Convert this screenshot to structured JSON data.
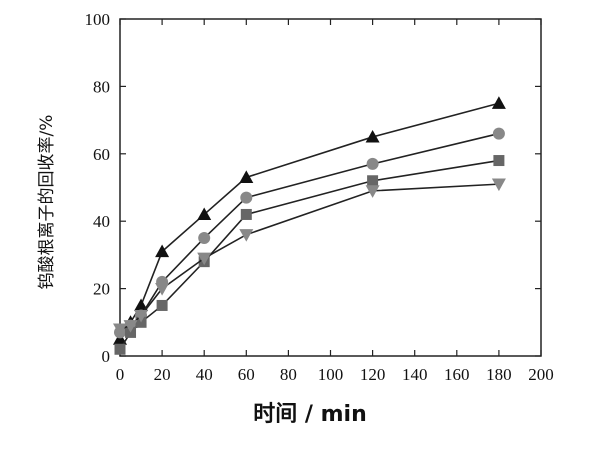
{
  "chart_data": {
    "type": "line",
    "title": "",
    "xlabel": "时间 / min",
    "ylabel": "钨酸根离子的回收率/%",
    "xlim": [
      0,
      200
    ],
    "ylim": [
      0,
      100
    ],
    "xticks": [
      "0",
      "20",
      "40",
      "60",
      "80",
      "100",
      "120",
      "140",
      "160",
      "180",
      "200"
    ],
    "yticks": [
      "0",
      "20",
      "40",
      "60",
      "80",
      "100"
    ],
    "grid": false,
    "legend": "none",
    "x": [
      0,
      5,
      10,
      20,
      40,
      60,
      120,
      180
    ],
    "series": [
      {
        "marker": "triangle-up",
        "color": "#111111",
        "values": [
          5,
          10,
          15,
          31,
          42,
          53,
          65,
          75
        ]
      },
      {
        "marker": "circle",
        "color": "#888888",
        "values": [
          7,
          9,
          12,
          22,
          35,
          47,
          57,
          66
        ]
      },
      {
        "marker": "square",
        "color": "#666666",
        "values": [
          2,
          7,
          10,
          15,
          28,
          42,
          52,
          58
        ]
      },
      {
        "marker": "triangle-down",
        "color": "#888888",
        "values": [
          8,
          9,
          12,
          20,
          29,
          36,
          49,
          51
        ]
      }
    ]
  }
}
